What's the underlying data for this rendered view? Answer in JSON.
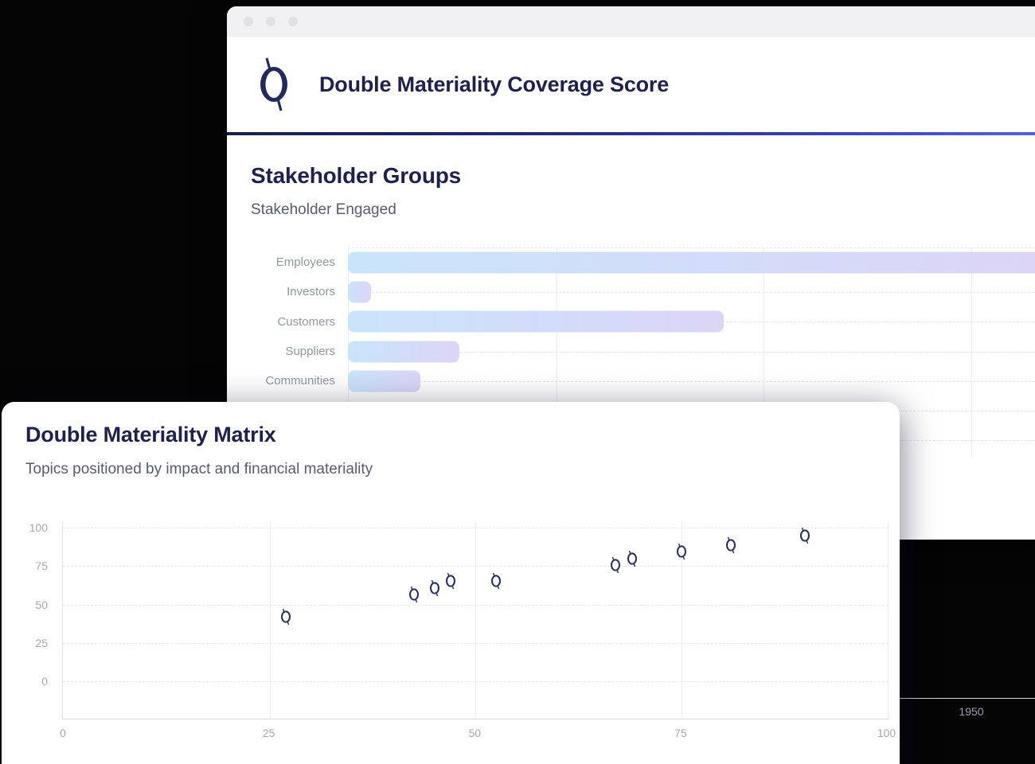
{
  "window": {
    "title": "Double Materiality Coverage Score",
    "logo_icon": "brand-o-slash-logo",
    "titlebar_dots": 3,
    "section_title": "Stakeholder Groups",
    "section_subtitle": "Stakeholder Engaged",
    "divider_gradient": [
      "#1a1e4e",
      "#5560dd"
    ]
  },
  "card": {
    "title": "Double Materiality Matrix",
    "subtitle": "Topics positioned by impact and financial materiality"
  },
  "colors": {
    "heading_navy": "#1e2150",
    "subtitle_gray": "#565b6f",
    "tick_gray": "#a3a8b2",
    "bar_gradient_start": "#c9e4fb",
    "bar_gradient_end": "#dcd5f8",
    "marker_navy": "#262c5d"
  },
  "chart_data": [
    {
      "type": "bar",
      "orientation": "horizontal",
      "title": "Stakeholder Groups",
      "subtitle": "Stakeholder Engaged",
      "categories": [
        "Employees",
        "Investors",
        "Customers",
        "Suppliers",
        "Communities"
      ],
      "values": [
        2400,
        72,
        1173,
        348,
        226
      ],
      "value_note": "values estimated from unlabeled gridlines at 650 and 1300; Employees bar is clipped at the right edge of the view",
      "xlim": [
        0,
        2145
      ],
      "xticks": [
        650,
        1300,
        1950
      ],
      "xtick_label_visible": "1950",
      "unlabeled_trailing_rows": 2,
      "grid": true,
      "legend": false
    },
    {
      "type": "scatter",
      "title": "Double Materiality Matrix",
      "subtitle": "Topics positioned by impact and financial materiality",
      "xlim": [
        0,
        100
      ],
      "ylim": [
        -24,
        100
      ],
      "xticks": [
        0,
        25,
        50,
        75,
        100
      ],
      "yticks": [
        100,
        75,
        50,
        25,
        0
      ],
      "grid": true,
      "legend": false,
      "marker": "brand-o-glyph",
      "points": [
        {
          "x": 27,
          "y": 42
        },
        {
          "x": 42.5,
          "y": 56.5
        },
        {
          "x": 45,
          "y": 60.5
        },
        {
          "x": 47,
          "y": 65.5
        },
        {
          "x": 52.5,
          "y": 65.5
        },
        {
          "x": 67,
          "y": 75.5
        },
        {
          "x": 69,
          "y": 80
        },
        {
          "x": 75,
          "y": 84.5
        },
        {
          "x": 81,
          "y": 88.5
        },
        {
          "x": 90,
          "y": 95
        }
      ]
    }
  ]
}
